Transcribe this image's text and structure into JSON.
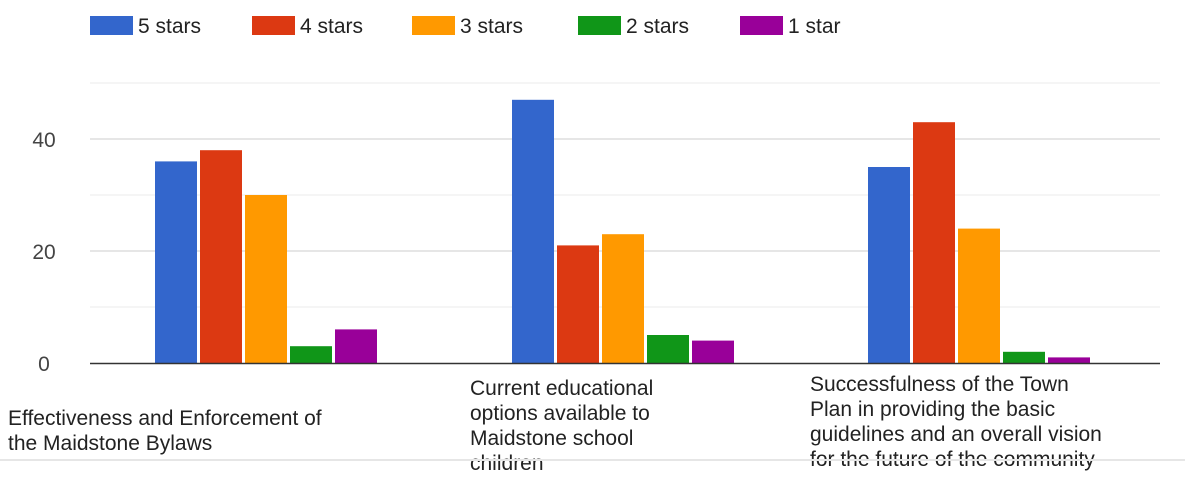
{
  "chart_data": {
    "type": "bar",
    "categories": [
      "Effectiveness and Enforcement of the Maidstone Bylaws",
      "Current educational options available to Maidstone school children",
      "Successfulness of the Town Plan in providing the basic guidelines and an overall vision for the future of the community"
    ],
    "category_lines": [
      [
        "Effectiveness and Enforcement of",
        "the Maidstone Bylaws"
      ],
      [
        "Current educational",
        "options available to",
        "Maidstone school",
        "children"
      ],
      [
        "Successfulness of the Town",
        "Plan in providing the basic",
        "guidelines and an overall vision",
        "for the future of the community"
      ]
    ],
    "series": [
      {
        "name": "5 stars",
        "color": "#3366cc",
        "values": [
          36,
          47,
          35
        ]
      },
      {
        "name": "4 stars",
        "color": "#dc3912",
        "values": [
          38,
          21,
          43
        ]
      },
      {
        "name": "3 stars",
        "color": "#ff9900",
        "values": [
          30,
          23,
          24
        ]
      },
      {
        "name": "2 stars",
        "color": "#109618",
        "values": [
          3,
          5,
          2
        ]
      },
      {
        "name": "1 star",
        "color": "#990099",
        "values": [
          6,
          4,
          1
        ]
      }
    ],
    "yticks": [
      0,
      20,
      40
    ],
    "ylim": [
      0,
      50
    ],
    "grid": true,
    "legend": "top-left"
  }
}
